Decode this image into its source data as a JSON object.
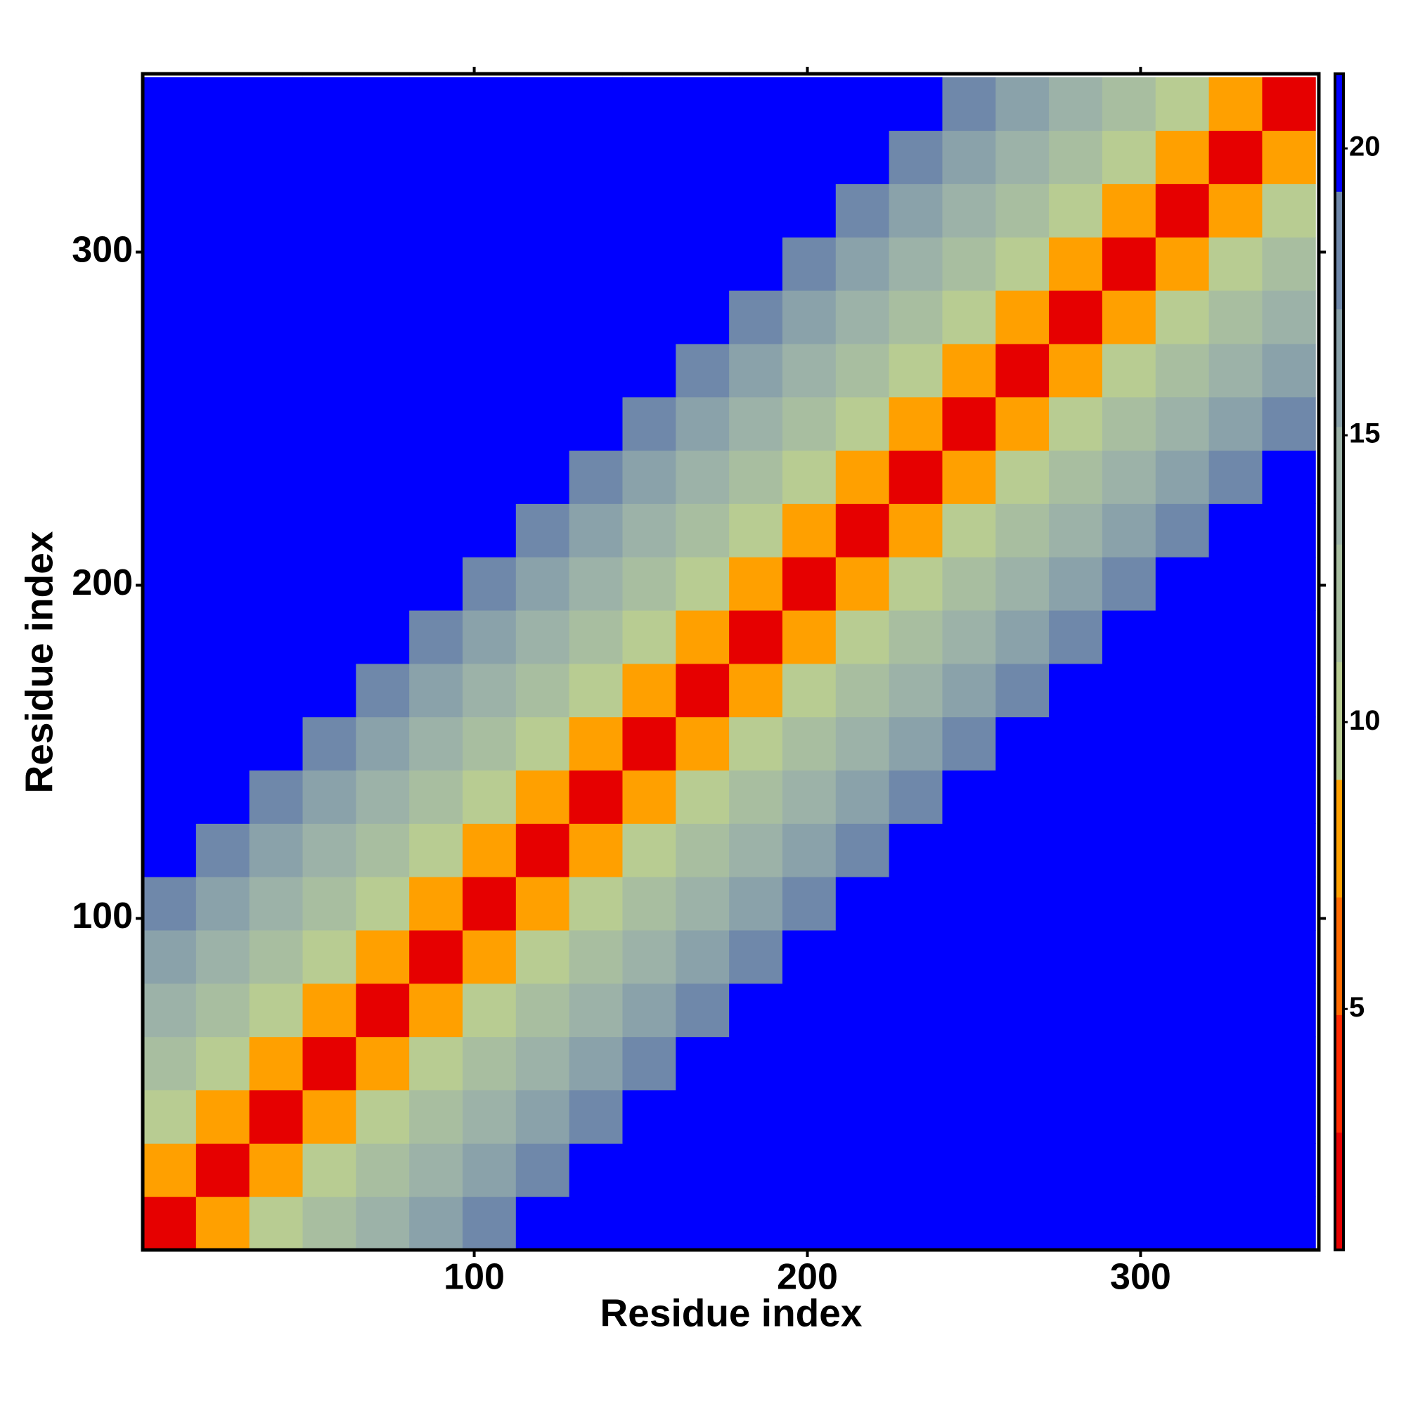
{
  "chart_data": {
    "type": "heatmap",
    "xlabel": "Residue index",
    "ylabel": "Residue index",
    "x": [
      8.5,
      24.5,
      40.5,
      56.5,
      72.5,
      88.5,
      104.5,
      120.5,
      136.5,
      152.5,
      168.5,
      184.5,
      200.5,
      216.5,
      232.5,
      248.5,
      264.5,
      280.5,
      296.5,
      312.5,
      328.5,
      344.5
    ],
    "y": [
      8.5,
      24.5,
      40.5,
      56.5,
      72.5,
      88.5,
      104.5,
      120.5,
      136.5,
      152.5,
      168.5,
      184.5,
      200.5,
      216.5,
      232.5,
      248.5,
      264.5,
      280.5,
      296.5,
      312.5,
      328.5,
      344.5
    ],
    "z": [
      [
        2,
        7.5,
        10,
        12,
        14,
        17,
        18.5,
        21.3,
        21.3,
        21.3,
        21.3,
        21.3,
        21.3,
        21.3,
        21.3,
        21.3,
        21.3,
        21.3,
        21.3,
        21.3,
        21.3,
        21.3
      ],
      [
        7.5,
        2,
        7.5,
        10,
        12,
        14,
        17,
        18.5,
        21.3,
        21.3,
        21.3,
        21.3,
        21.3,
        21.3,
        21.3,
        21.3,
        21.3,
        21.3,
        21.3,
        21.3,
        21.3,
        21.3
      ],
      [
        10,
        7.5,
        2,
        7.5,
        10,
        12,
        14,
        17,
        18.5,
        21.3,
        21.3,
        21.3,
        21.3,
        21.3,
        21.3,
        21.3,
        21.3,
        21.3,
        21.3,
        21.3,
        21.3,
        21.3
      ],
      [
        12,
        10,
        7.5,
        2,
        7.5,
        10,
        12,
        14,
        17,
        18.5,
        21.3,
        21.3,
        21.3,
        21.3,
        21.3,
        21.3,
        21.3,
        21.3,
        21.3,
        21.3,
        21.3,
        21.3
      ],
      [
        14,
        12,
        10,
        7.5,
        2,
        7.5,
        10,
        12,
        14,
        17,
        18.5,
        21.3,
        21.3,
        21.3,
        21.3,
        21.3,
        21.3,
        21.3,
        21.3,
        21.3,
        21.3,
        21.3
      ],
      [
        17,
        14,
        12,
        10,
        7.5,
        2,
        7.5,
        10,
        12,
        14,
        17,
        18.5,
        21.3,
        21.3,
        21.3,
        21.3,
        21.3,
        21.3,
        21.3,
        21.3,
        21.3,
        21.3
      ],
      [
        18.5,
        17,
        14,
        12,
        10,
        7.5,
        2,
        7.5,
        10,
        12,
        14,
        17,
        18.5,
        21.3,
        21.3,
        21.3,
        21.3,
        21.3,
        21.3,
        21.3,
        21.3,
        21.3
      ],
      [
        21.3,
        18.5,
        17,
        14,
        12,
        10,
        7.5,
        2,
        7.5,
        10,
        12,
        14,
        17,
        18.5,
        21.3,
        21.3,
        21.3,
        21.3,
        21.3,
        21.3,
        21.3,
        21.3
      ],
      [
        21.3,
        21.3,
        18.5,
        17,
        14,
        12,
        10,
        7.5,
        2,
        7.5,
        10,
        12,
        14,
        17,
        18.5,
        21.3,
        21.3,
        21.3,
        21.3,
        21.3,
        21.3,
        21.3
      ],
      [
        21.3,
        21.3,
        21.3,
        18.5,
        17,
        14,
        12,
        10,
        7.5,
        2,
        7.5,
        10,
        12,
        14,
        17,
        18.5,
        21.3,
        21.3,
        21.3,
        21.3,
        21.3,
        21.3
      ],
      [
        21.3,
        21.3,
        21.3,
        21.3,
        18.5,
        17,
        14,
        12,
        10,
        7.5,
        2,
        7.5,
        10,
        12,
        14,
        17,
        18.5,
        21.3,
        21.3,
        21.3,
        21.3,
        21.3
      ],
      [
        21.3,
        21.3,
        21.3,
        21.3,
        21.3,
        18.5,
        17,
        14,
        12,
        10,
        7.5,
        2,
        7.5,
        10,
        12,
        14,
        17,
        18.5,
        21.3,
        21.3,
        21.3,
        21.3
      ],
      [
        21.3,
        21.3,
        21.3,
        21.3,
        21.3,
        21.3,
        18.5,
        17,
        14,
        12,
        10,
        7.5,
        2,
        7.5,
        10,
        12,
        14,
        17,
        18.5,
        21.3,
        21.3,
        21.3
      ],
      [
        21.3,
        21.3,
        21.3,
        21.3,
        21.3,
        21.3,
        21.3,
        18.5,
        17,
        14,
        12,
        10,
        7.5,
        2,
        7.5,
        10,
        12,
        14,
        17,
        18.5,
        21.3,
        21.3
      ],
      [
        21.3,
        21.3,
        21.3,
        21.3,
        21.3,
        21.3,
        21.3,
        21.3,
        18.5,
        17,
        14,
        12,
        10,
        7.5,
        2,
        7.5,
        10,
        12,
        14,
        17,
        18.5,
        21.3
      ],
      [
        21.3,
        21.3,
        21.3,
        21.3,
        21.3,
        21.3,
        21.3,
        21.3,
        21.3,
        18.5,
        17,
        14,
        12,
        10,
        7.5,
        2,
        7.5,
        10,
        12,
        14,
        17,
        18.5
      ],
      [
        21.3,
        21.3,
        21.3,
        21.3,
        21.3,
        21.3,
        21.3,
        21.3,
        21.3,
        21.3,
        18.5,
        17,
        14,
        12,
        10,
        7.5,
        2,
        7.5,
        10,
        12,
        14,
        17
      ],
      [
        21.3,
        21.3,
        21.3,
        21.3,
        21.3,
        21.3,
        21.3,
        21.3,
        21.3,
        21.3,
        21.3,
        18.5,
        17,
        14,
        12,
        10,
        7.5,
        2,
        7.5,
        10,
        12,
        14
      ],
      [
        21.3,
        21.3,
        21.3,
        21.3,
        21.3,
        21.3,
        21.3,
        21.3,
        21.3,
        21.3,
        21.3,
        21.3,
        18.5,
        17,
        14,
        12,
        10,
        7.5,
        2,
        7.5,
        10,
        12
      ],
      [
        21.3,
        21.3,
        21.3,
        21.3,
        21.3,
        21.3,
        21.3,
        21.3,
        21.3,
        21.3,
        21.3,
        21.3,
        21.3,
        18.5,
        17,
        14,
        12,
        10,
        7.5,
        2,
        7.5,
        10
      ],
      [
        21.3,
        21.3,
        21.3,
        21.3,
        21.3,
        21.3,
        21.3,
        21.3,
        21.3,
        21.3,
        21.3,
        21.3,
        21.3,
        21.3,
        18.5,
        17,
        14,
        12,
        10,
        7.5,
        2,
        7.5
      ],
      [
        21.3,
        21.3,
        21.3,
        21.3,
        21.3,
        21.3,
        21.3,
        21.3,
        21.3,
        21.3,
        21.3,
        21.3,
        21.3,
        21.3,
        21.3,
        18.5,
        17,
        14,
        12,
        10,
        7.5,
        2
      ]
    ],
    "xlim": [
      0.5,
      353.5
    ],
    "ylim": [
      0.5,
      353.5
    ],
    "xticks": [
      100,
      200,
      300
    ],
    "yticks": [
      100,
      200,
      300
    ],
    "colorbar": {
      "clim": [
        0.8,
        21.3
      ],
      "ticks": [
        5,
        10,
        15,
        20
      ],
      "colors": [
        "#e60000",
        "#ff2a00",
        "#ff6a00",
        "#ffa000",
        "#b8cc92",
        "#a8bea0",
        "#9cb2a8",
        "#8aa2aa",
        "#6f88aa",
        "#0000ff"
      ]
    }
  }
}
